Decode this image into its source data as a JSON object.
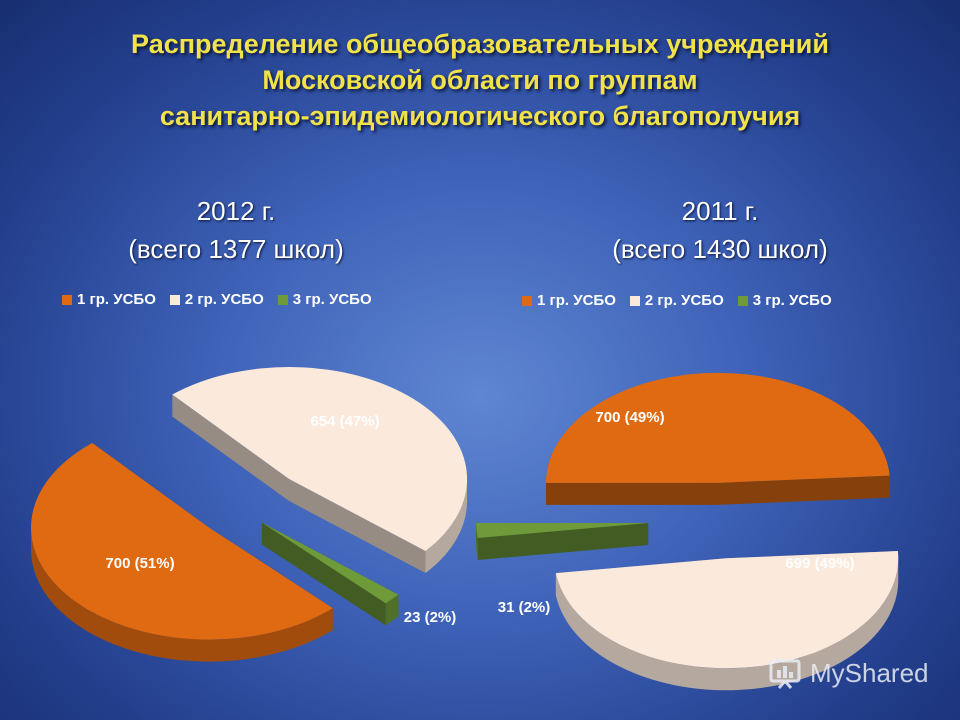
{
  "title": {
    "line1": "Распределение общеобразовательных учреждений",
    "line2": "Московской области по группам",
    "line3": "санитарно-эпидемиологического благополучия"
  },
  "legend": {
    "items": [
      {
        "label": "1 гр. УСБО",
        "color": "#e06a12"
      },
      {
        "label": "2 гр. УСБО",
        "color": "#fbe9dc"
      },
      {
        "label": "3 гр. УСБО",
        "color": "#6e9a3a"
      }
    ]
  },
  "chart_data": [
    {
      "type": "pie",
      "title": "2012 г.",
      "subtitle": "(всего 1377 школ)",
      "categories": [
        "1 гр. УСБО",
        "2 гр. УСБО",
        "3 гр. УСБО"
      ],
      "values": [
        700,
        654,
        23
      ],
      "percents": [
        51,
        47,
        2
      ],
      "data_labels": [
        "700 (51%)",
        "654 (47%)",
        "23 (2%)"
      ],
      "total": 1377,
      "legend_position": "top"
    },
    {
      "type": "pie",
      "title": "2011 г.",
      "subtitle": "(всего 1430 школ)",
      "categories": [
        "1 гр. УСБО",
        "2 гр. УСБО",
        "3 гр. УСБО"
      ],
      "values": [
        700,
        699,
        31
      ],
      "percents": [
        49,
        49,
        2
      ],
      "data_labels": [
        "700 (49%)",
        "699 (49%)",
        "31 (2%)"
      ],
      "total": 1430,
      "legend_position": "top"
    }
  ],
  "watermark": {
    "text": "MyShared"
  }
}
